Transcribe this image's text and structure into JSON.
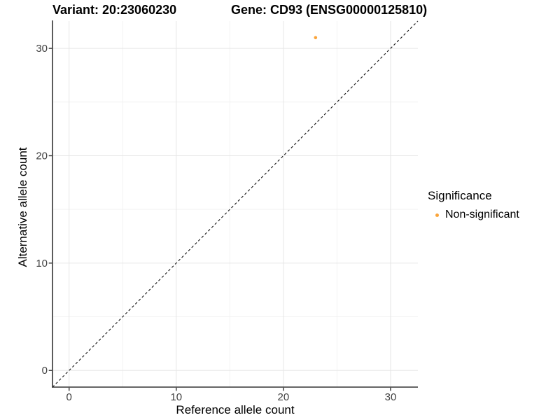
{
  "titles": {
    "variant": "Variant: 20:23060230",
    "gene": "Gene: CD93 (ENSG00000125810)"
  },
  "chart_data": {
    "type": "scatter",
    "xlabel": "Reference allele count",
    "ylabel": "Alternative allele count",
    "xlim": [
      -1.55,
      32.55
    ],
    "ylim": [
      -1.55,
      32.55
    ],
    "xticks": [
      0,
      10,
      20,
      30
    ],
    "yticks": [
      0,
      10,
      20,
      30
    ],
    "minor_gridlines": [
      5,
      15,
      25
    ],
    "grid": "major and minor gridlines, light gray on white panel",
    "identity_line": {
      "equation": "y = x",
      "style": "dashed",
      "color": "#111111"
    },
    "series": [
      {
        "name": "Non-significant",
        "color": "#FAA43A",
        "points": [
          {
            "x": 23,
            "y": 31
          }
        ]
      }
    ],
    "legend": {
      "title": "Significance",
      "position": "right-middle",
      "items": [
        {
          "label": "Non-significant",
          "color": "#FAA43A"
        }
      ]
    },
    "colors": {
      "axis_line": "#333333",
      "tick_mark": "#333333",
      "tick_label": "#404040",
      "grid_major": "#e6e6e6",
      "grid_minor": "#f2f2f2",
      "background": "#ffffff"
    }
  }
}
